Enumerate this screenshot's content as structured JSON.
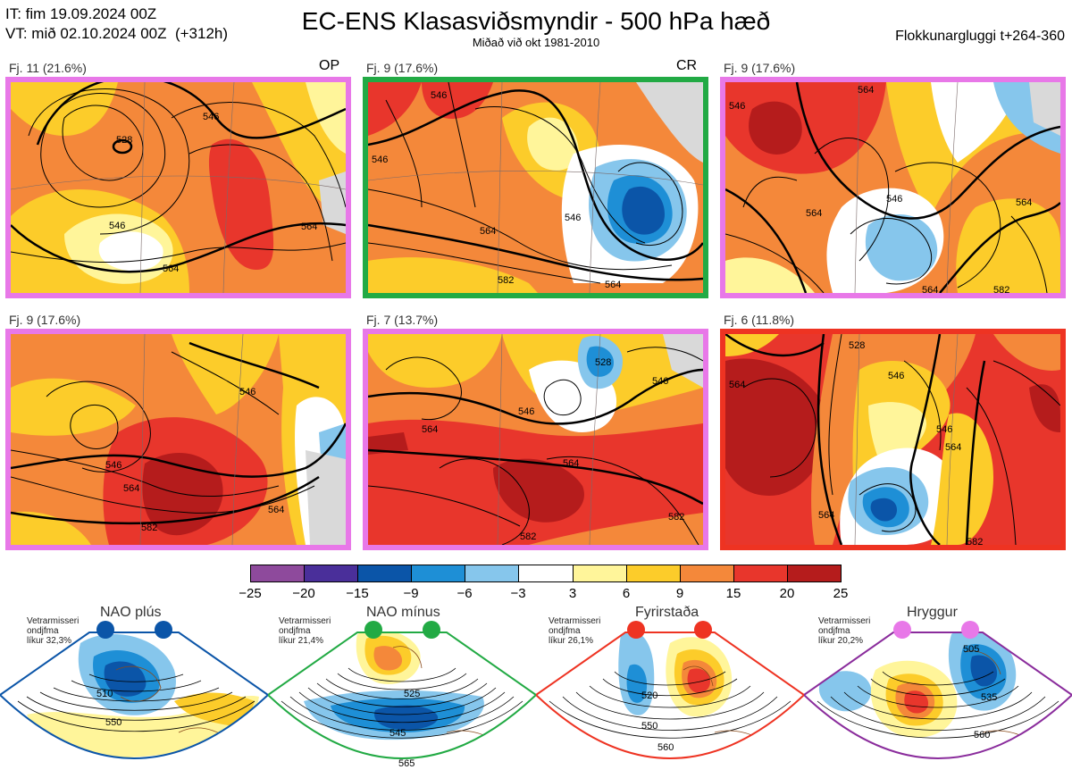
{
  "header": {
    "issue_time": "IT: fim 19.09.2024 00Z",
    "valid_time": "VT: mið 02.10.2024 00Z  (+312h)",
    "title": "EC-ENS Klasasviðsmyndir - 500 hPa hæð",
    "subtitle": "Miðað við okt 1981-2010",
    "cluster_window": "Flokkunargluggi t+264-360"
  },
  "panels": [
    {
      "label": "Fj. 11 (21.6%)",
      "tag": "OP",
      "border": "#e878e8",
      "contours": [
        "528",
        "546",
        "546",
        "564",
        "564"
      ]
    },
    {
      "label": "Fj. 9 (17.6%)",
      "tag": "CR",
      "border": "#22aa44",
      "contours": [
        "546",
        "546",
        "546",
        "564",
        "564",
        "582"
      ]
    },
    {
      "label": "Fj. 9 (17.6%)",
      "tag": "",
      "border": "#e878e8",
      "contours": [
        "546",
        "546",
        "564",
        "564",
        "564",
        "564",
        "582"
      ]
    },
    {
      "label": "Fj. 9 (17.6%)",
      "tag": "",
      "border": "#e878e8",
      "contours": [
        "546",
        "546",
        "564",
        "564",
        "582"
      ]
    },
    {
      "label": "Fj. 7 (13.7%)",
      "tag": "",
      "border": "#e878e8",
      "contours": [
        "528",
        "546",
        "546",
        "564",
        "564",
        "582",
        "582"
      ]
    },
    {
      "label": "Fj. 6 (11.8%)",
      "tag": "",
      "border": "#ee3322",
      "contours": [
        "528",
        "546",
        "546",
        "564",
        "564",
        "564",
        "582"
      ]
    }
  ],
  "colorbar": {
    "ticks": [
      "−25",
      "−20",
      "−15",
      "−9",
      "−6",
      "−3",
      "3",
      "6",
      "9",
      "15",
      "20",
      "25"
    ],
    "colors": [
      "#8e4a9c",
      "#4a2f9a",
      "#0b55a8",
      "#1e8fd6",
      "#86c6ec",
      "#ffffff",
      "#fff59a",
      "#fccc2a",
      "#f4883a",
      "#e8362c",
      "#b51c1c"
    ]
  },
  "regimes": [
    {
      "name": "NAO plús",
      "note": "Vetrarmisseri\nondjfma\nlíkur 32,3%",
      "color": "#0b55a8",
      "contours": [
        "510",
        "550"
      ]
    },
    {
      "name": "NAO mínus",
      "note": "Vetrarmisseri\nondjfma\nlíkur 21,4%",
      "color": "#22aa44",
      "contours": [
        "525",
        "545",
        "565"
      ]
    },
    {
      "name": "Fyrirstaða",
      "note": "Vetrarmisseri\nondjfma\nlíkur 26,1%",
      "color": "#ee3322",
      "contours": [
        "520",
        "550",
        "560"
      ]
    },
    {
      "name": "Hryggur",
      "note": "Vetrarmisseri\nondjfma\nlíkur 20,2%",
      "color": "#e878e8",
      "contours": [
        "505",
        "535",
        "560"
      ]
    }
  ]
}
